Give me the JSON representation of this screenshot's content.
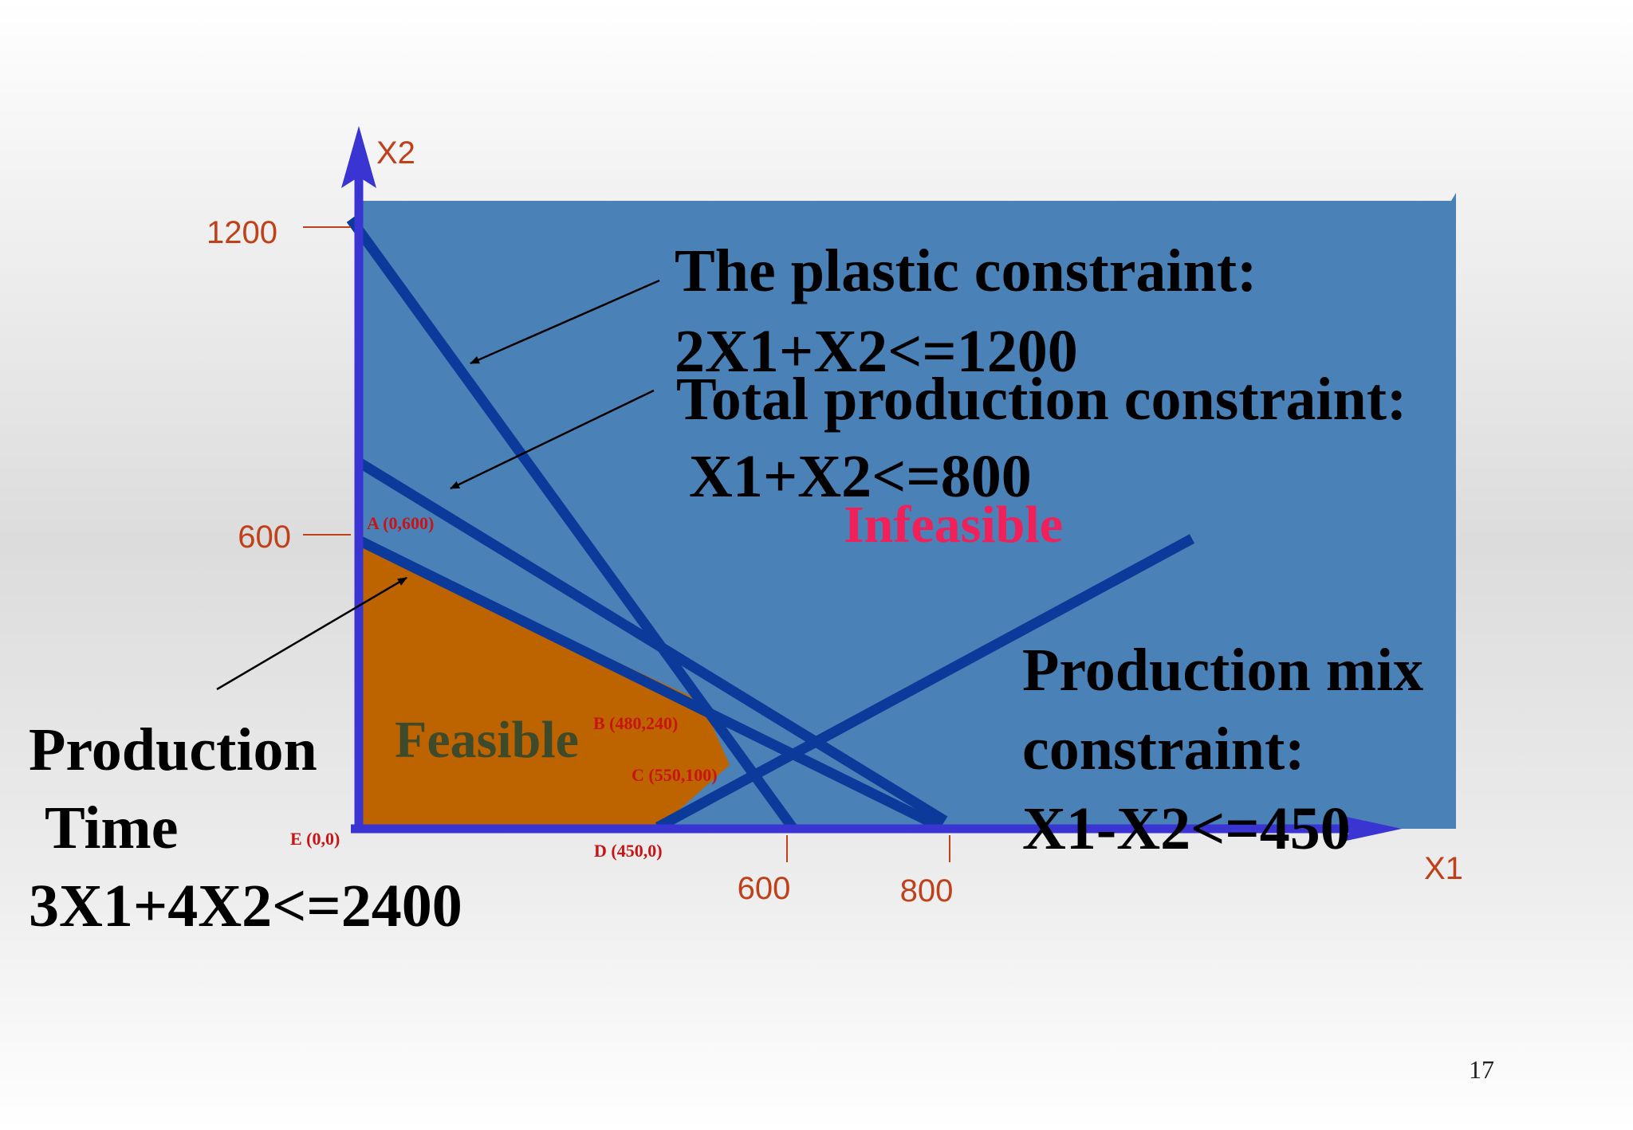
{
  "slide_number": "17",
  "colors": {
    "region_fill": "#4a82b8",
    "feasible_fill": "#bd6400",
    "constraint_line": "#0b3a9a",
    "axis": "#3a34d2",
    "axis_label": "#c0401a",
    "infeasible_text": "#f0205a",
    "feasible_text": "#3f4a2a",
    "point_label": "#c81414"
  },
  "axes": {
    "x_name": "X1",
    "y_name": "X2",
    "x_ticks": [
      "600",
      "800"
    ],
    "y_ticks": [
      "1200",
      "600"
    ]
  },
  "points": [
    {
      "id": "A",
      "label": "A (0,600)",
      "x": 0,
      "y": 600
    },
    {
      "id": "B",
      "label": "B (480,240)",
      "x": 480,
      "y": 240
    },
    {
      "id": "C",
      "label": "C (550,100)",
      "x": 550,
      "y": 100
    },
    {
      "id": "D",
      "label": "D (450,0)",
      "x": 450,
      "y": 0
    },
    {
      "id": "E",
      "label": "E (0,0)",
      "x": 0,
      "y": 0
    }
  ],
  "regions": {
    "infeasible": "Infeasible",
    "feasible": "Feasible"
  },
  "constraints": {
    "plastic": {
      "title": "The plastic constraint:",
      "formula": "2X1+X2<=1200"
    },
    "total_production": {
      "title": "Total production constraint:",
      "formula": "X1+X2<=800"
    },
    "production_mix": {
      "title_line1": "Production mix",
      "title_line2": "constraint:",
      "formula": "X1-X2<=450"
    },
    "production_time": {
      "title_line1": "Production",
      "title_line2": "Time",
      "formula": "3X1+4X2<=2400"
    }
  }
}
